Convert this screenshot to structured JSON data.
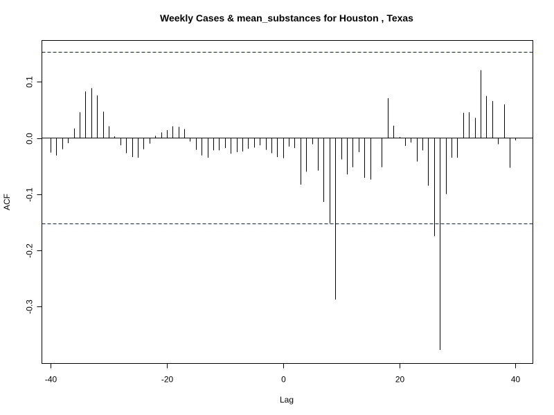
{
  "chart_data": {
    "type": "bar",
    "title": "Weekly Cases & mean_substances for Houston , Texas",
    "xlabel": "Lag",
    "ylabel": "ACF",
    "xlim": [
      -41.5,
      43
    ],
    "ylim": [
      -0.402,
      0.174
    ],
    "x_ticks": [
      "-40",
      "-20",
      "0",
      "20",
      "40"
    ],
    "x_tick_values": [
      -40,
      -20,
      0,
      20,
      40
    ],
    "y_ticks": [
      "-0.3",
      "-0.2",
      "-0.1",
      "0.0",
      "0.1"
    ],
    "y_tick_values": [
      -0.3,
      -0.2,
      -0.1,
      0.0,
      0.1
    ],
    "confidence_limit": 0.153,
    "confidence_color": "#0000cc",
    "grid": false,
    "series": [
      {
        "x": [
          -40,
          -39,
          -38,
          -37,
          -36,
          -35,
          -34,
          -33,
          -32,
          -31,
          -30,
          -29,
          -28,
          -27,
          -26,
          -25,
          -24,
          -23,
          -22,
          -21,
          -20,
          -19,
          -18,
          -17,
          -16,
          -15,
          -14,
          -13,
          -12,
          -11,
          -10,
          -9,
          -8,
          -7,
          -6,
          -5,
          -4,
          -3,
          -2,
          -1,
          0,
          1,
          2,
          3,
          4,
          5,
          6,
          7,
          8,
          9,
          10,
          11,
          12,
          13,
          14,
          15,
          16,
          17,
          18,
          19,
          20,
          21,
          22,
          23,
          24,
          25,
          26,
          27,
          28,
          29,
          30,
          31,
          32,
          33,
          34,
          35,
          36,
          37,
          38,
          39,
          40
        ],
        "values": [
          -0.026,
          -0.031,
          -0.02,
          -0.009,
          0.017,
          0.046,
          0.083,
          0.089,
          0.076,
          0.047,
          0.021,
          0.003,
          -0.013,
          -0.027,
          -0.034,
          -0.035,
          -0.02,
          -0.01,
          0.004,
          0.01,
          0.014,
          0.021,
          0.02,
          0.016,
          -0.006,
          -0.021,
          -0.031,
          -0.035,
          -0.022,
          -0.022,
          -0.018,
          -0.028,
          -0.025,
          -0.024,
          -0.019,
          -0.017,
          -0.013,
          -0.021,
          -0.027,
          -0.034,
          -0.036,
          -0.015,
          -0.018,
          -0.083,
          -0.06,
          -0.011,
          -0.058,
          -0.114,
          -0.152,
          -0.288,
          -0.038,
          -0.065,
          -0.052,
          -0.025,
          -0.071,
          -0.074,
          0.0,
          -0.052,
          0.071,
          0.022,
          0.002,
          -0.014,
          -0.008,
          -0.042,
          -0.022,
          -0.085,
          -0.175,
          -0.378,
          -0.1,
          -0.035,
          -0.035,
          0.045,
          0.046,
          0.036,
          0.121,
          0.075,
          0.066,
          -0.011,
          0.06,
          -0.053,
          -0.004
        ]
      }
    ]
  }
}
